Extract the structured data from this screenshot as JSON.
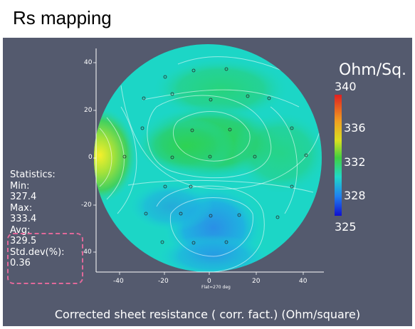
{
  "title": "Rs mapping",
  "unit_label": "Ohm/Sq.",
  "colorbar": {
    "labels": [
      "340",
      "336",
      "332",
      "328",
      "325"
    ]
  },
  "y_ticks": [
    "40",
    "20",
    "0",
    "-20",
    "-40"
  ],
  "x_ticks": [
    "-40",
    "-20",
    "0",
    "20",
    "40"
  ],
  "x_axis_note": "Flat=270 deg",
  "statistics": {
    "heading": "Statistics:",
    "min_label": "Min:",
    "min_value": "327.4",
    "max_label": "Max:",
    "max_value": "333.4",
    "avg_label": "Avg:",
    "avg_value": "329.5",
    "std_label": "Std.dev(%):",
    "std_value": "0.36"
  },
  "footer": "Corrected sheet resistance ( corr. fact.)  (Ohm/square)",
  "colors": {
    "panel": "#545a6e",
    "highlight": "#e0699a",
    "map_cyan": "#1ad8d0",
    "map_green": "#33c84a",
    "map_blue": "#2aa7e6"
  }
}
